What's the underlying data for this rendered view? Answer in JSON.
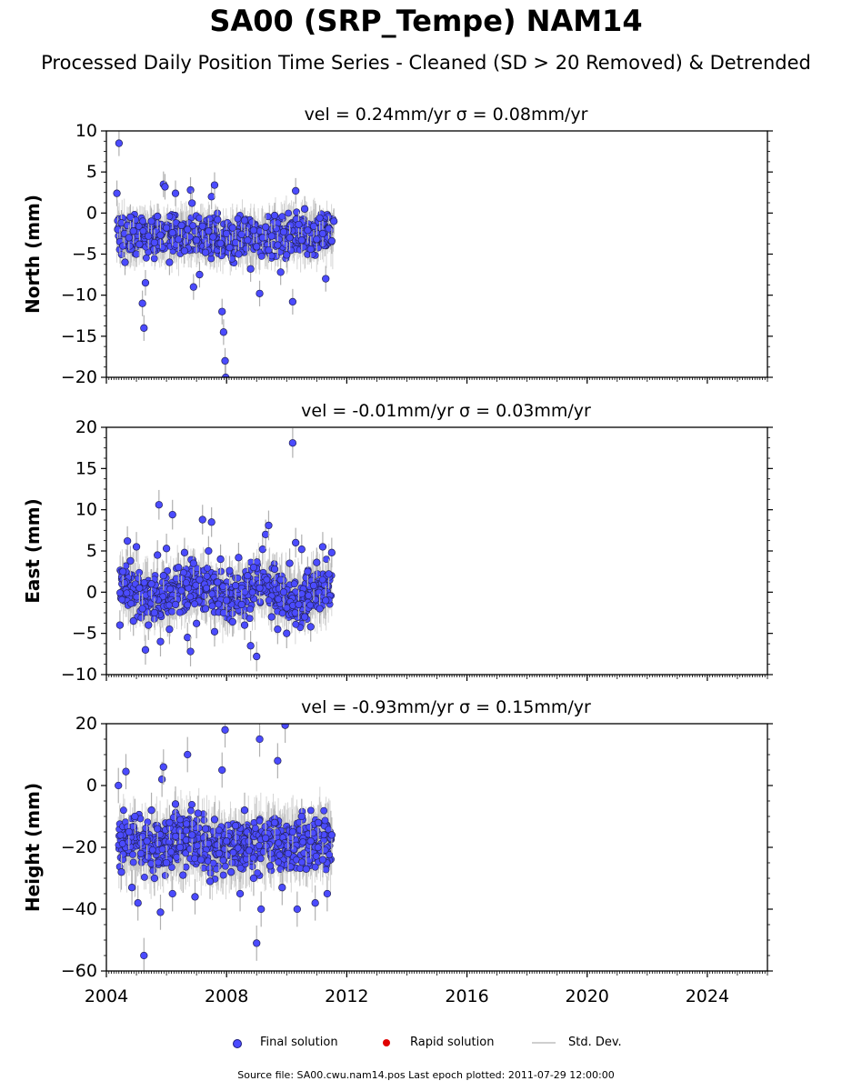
{
  "title": "SA00 (SRP_Tempe) NAM14",
  "subtitle": "Processed Daily Position Time Series - Cleaned (SD > 20 Removed) & Detrended",
  "legend": {
    "final": "Final solution",
    "rapid": "Rapid solution",
    "std": "Std. Dev."
  },
  "footer": "Source file: SA00.cwu.nam14.pos  Last epoch plotted: 2011-07-29 12:00:00",
  "colors": {
    "final": "#4b4bff",
    "rapid": "#e00000",
    "errorbar": "#b8b8b8"
  },
  "chart_data": [
    {
      "type": "scatter",
      "title": "vel = 0.24mm/yr   σ = 0.08mm/yr",
      "ylabel": "North (mm)",
      "xlim": [
        2004,
        2026
      ],
      "ylim": [
        -20,
        10
      ],
      "yticks": [
        -20,
        -15,
        -10,
        -5,
        0,
        5,
        10
      ],
      "xticks": [
        2004,
        2008,
        2012,
        2016,
        2020,
        2024
      ],
      "show_xticklabels": false,
      "series": [
        {
          "name": "Final solution",
          "x": [
            2004.35,
            2004.38,
            2004.42,
            2004.45,
            2004.5,
            2004.55,
            2004.6,
            2004.62,
            2004.7,
            2004.75,
            2004.8,
            2004.9,
            2005.0,
            2005.1,
            2005.2,
            2005.25,
            2005.3,
            2005.4,
            2005.5,
            2005.6,
            2005.7,
            2005.8,
            2005.9,
            2005.95,
            2006.0,
            2006.1,
            2006.2,
            2006.3,
            2006.4,
            2006.5,
            2006.6,
            2006.7,
            2006.8,
            2006.85,
            2006.9,
            2007.0,
            2007.1,
            2007.2,
            2007.3,
            2007.4,
            2007.5,
            2007.55,
            2007.6,
            2007.7,
            2007.8,
            2007.85,
            2007.9,
            2007.95,
            2007.97,
            2008.0,
            2008.1,
            2008.2,
            2008.3,
            2008.4,
            2008.5,
            2008.6,
            2008.7,
            2008.8,
            2008.9,
            2009.0,
            2009.1,
            2009.2,
            2009.3,
            2009.4,
            2009.5,
            2009.6,
            2009.7,
            2009.8,
            2009.9,
            2010.0,
            2010.1,
            2010.2,
            2010.3,
            2010.4,
            2010.5,
            2010.6,
            2010.7,
            2010.8,
            2010.9,
            2011.0,
            2011.1,
            2011.2,
            2011.3,
            2011.4,
            2011.5,
            2011.57
          ],
          "y": [
            2.4,
            -2.0,
            8.5,
            -3.5,
            -1.2,
            -4.0,
            -2.5,
            -6.0,
            -1.5,
            -3.0,
            -0.5,
            -2.2,
            -5.0,
            -3.8,
            -11.0,
            -14.0,
            -8.5,
            -2.8,
            -1.0,
            -3.6,
            -0.4,
            -2.7,
            3.5,
            3.2,
            -1.8,
            -6.0,
            -2.4,
            2.4,
            -3.2,
            -1.5,
            -4.6,
            -2.0,
            2.8,
            1.2,
            -9.0,
            -3.3,
            -7.5,
            -1.6,
            -4.8,
            -2.2,
            2.0,
            -2.9,
            3.4,
            -0.8,
            -3.7,
            -12.0,
            -14.5,
            -18.0,
            -20.0,
            -2.5,
            -4.2,
            -1.8,
            -3.6,
            -5.0,
            -2.6,
            -0.9,
            -3.3,
            -6.8,
            -2.1,
            -4.1,
            -9.8,
            -3.0,
            -1.7,
            -4.5,
            -2.8,
            -0.3,
            -3.9,
            -7.2,
            -2.3,
            -5.1,
            -3.0,
            -10.8,
            2.7,
            -1.4,
            -3.3,
            0.5,
            -2.1,
            -4.4,
            -1.6,
            -3.2,
            -0.6,
            -2.5,
            -8.0,
            -1.9,
            -3.4,
            -1.0
          ]
        }
      ],
      "band": {
        "center": [
          -2.6,
          -3.0,
          -2.8,
          -3.1,
          -2.9,
          -2.6,
          -2.4
        ],
        "half_width": 2.6
      }
    },
    {
      "type": "scatter",
      "title": "vel = -0.01mm/yr   σ = 0.03mm/yr",
      "ylabel": "East (mm)",
      "xlim": [
        2004,
        2026
      ],
      "ylim": [
        -10,
        20
      ],
      "yticks": [
        -10,
        -5,
        0,
        5,
        10,
        15,
        20
      ],
      "xticks": [
        2004,
        2008,
        2012,
        2016,
        2020,
        2024
      ],
      "show_xticklabels": false,
      "series": [
        {
          "name": "Final solution",
          "x": [
            2004.45,
            2004.55,
            2004.7,
            2004.8,
            2004.9,
            2005.0,
            2005.1,
            2005.2,
            2005.3,
            2005.4,
            2005.5,
            2005.6,
            2005.7,
            2005.75,
            2005.8,
            2005.9,
            2006.0,
            2006.1,
            2006.2,
            2006.3,
            2006.4,
            2006.5,
            2006.6,
            2006.7,
            2006.8,
            2006.9,
            2007.0,
            2007.1,
            2007.2,
            2007.3,
            2007.4,
            2007.5,
            2007.6,
            2007.7,
            2007.8,
            2007.9,
            2008.0,
            2008.1,
            2008.2,
            2008.3,
            2008.4,
            2008.5,
            2008.6,
            2008.7,
            2008.8,
            2008.9,
            2009.0,
            2009.1,
            2009.2,
            2009.3,
            2009.4,
            2009.5,
            2009.6,
            2009.7,
            2009.8,
            2009.9,
            2010.0,
            2010.1,
            2010.2,
            2010.3,
            2010.4,
            2010.5,
            2010.6,
            2010.7,
            2010.8,
            2010.9,
            2011.0,
            2011.1,
            2011.2,
            2011.3,
            2011.4,
            2011.5
          ],
          "y": [
            -4.0,
            2.5,
            6.2,
            3.8,
            -3.5,
            5.5,
            0.5,
            -2.0,
            -7.0,
            -4.0,
            1.0,
            -2.5,
            4.5,
            10.6,
            -6.0,
            2.0,
            5.3,
            -4.5,
            9.4,
            -1.5,
            3.0,
            0.2,
            4.8,
            -5.5,
            -7.2,
            3.5,
            -3.8,
            1.5,
            8.8,
            -2.0,
            5.0,
            8.5,
            -4.8,
            1.2,
            4.0,
            -2.5,
            -1.0,
            2.6,
            -3.6,
            0.8,
            4.2,
            -1.5,
            -4.0,
            2.0,
            -6.5,
            3.0,
            -7.8,
            0.5,
            5.2,
            7.0,
            8.1,
            -3.0,
            2.8,
            -4.5,
            1.5,
            0.0,
            -5.0,
            3.5,
            18.1,
            6.0,
            -1.5,
            5.2,
            -3.0,
            2.5,
            -4.2,
            0.8,
            3.6,
            -2.0,
            5.5,
            -1.0,
            2.2,
            4.8
          ]
        }
      ],
      "band": {
        "center": [
          1.0,
          -1.0,
          1.0,
          -1.0,
          1.0,
          -1.0,
          1.0
        ],
        "half_width": 3.0
      }
    },
    {
      "type": "scatter",
      "title": "vel = -0.93mm/yr   σ = 0.15mm/yr",
      "ylabel": "Height (mm)",
      "xlim": [
        2004,
        2026
      ],
      "ylim": [
        -60,
        20
      ],
      "yticks": [
        -60,
        -40,
        -20,
        0,
        20
      ],
      "xticks": [
        2004,
        2008,
        2012,
        2016,
        2020,
        2024
      ],
      "show_xticklabels": true,
      "series": [
        {
          "name": "Final solution",
          "x": [
            2004.4,
            2004.5,
            2004.65,
            2004.75,
            2004.85,
            2004.95,
            2005.05,
            2005.15,
            2005.25,
            2005.35,
            2005.5,
            2005.6,
            2005.7,
            2005.8,
            2005.85,
            2005.9,
            2006.0,
            2006.1,
            2006.2,
            2006.3,
            2006.45,
            2006.55,
            2006.7,
            2006.85,
            2006.95,
            2007.05,
            2007.15,
            2007.3,
            2007.45,
            2007.6,
            2007.75,
            2007.85,
            2007.95,
            2008.0,
            2008.15,
            2008.3,
            2008.45,
            2008.6,
            2008.75,
            2008.9,
            2009.0,
            2009.1,
            2009.15,
            2009.3,
            2009.45,
            2009.6,
            2009.7,
            2009.85,
            2009.95,
            2010.05,
            2010.2,
            2010.35,
            2010.5,
            2010.65,
            2010.8,
            2010.95,
            2011.05,
            2011.2,
            2011.35,
            2011.5
          ],
          "y": [
            0.0,
            -28.0,
            4.5,
            -15.0,
            -33.0,
            -10.0,
            -38.0,
            -22.0,
            -55.0,
            -18.0,
            -8.0,
            -30.0,
            -14.0,
            -41.0,
            2.0,
            6.0,
            -25.0,
            -12.0,
            -35.0,
            -6.0,
            -20.0,
            -29.0,
            10.0,
            -16.0,
            -36.0,
            -9.0,
            -24.0,
            -14.0,
            -31.0,
            -11.0,
            -22.0,
            5.0,
            18.0,
            -18.0,
            -28.0,
            -13.0,
            -35.0,
            -8.0,
            -21.0,
            -30.0,
            -51.0,
            15.0,
            -40.0,
            -17.0,
            -26.0,
            -12.0,
            8.0,
            -33.0,
            19.5,
            -22.0,
            -15.0,
            -40.0,
            -10.0,
            -27.0,
            -18.0,
            -38.0,
            -12.0,
            -24.0,
            -35.0,
            -16.0
          ]
        }
      ],
      "band": {
        "center": [
          -18,
          -20,
          -17,
          -21,
          -18,
          -19,
          -18
        ],
        "half_width": 9.5
      }
    }
  ]
}
